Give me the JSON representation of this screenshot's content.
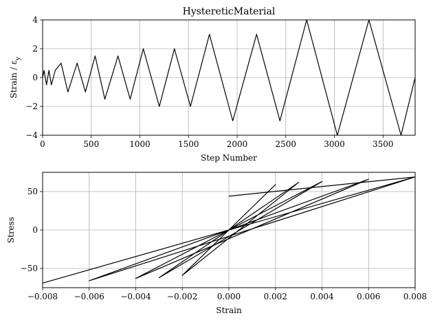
{
  "chart_data": [
    {
      "type": "line",
      "title": "HystereticMaterial",
      "xlabel": "Step Number",
      "ylabel": "Strain / ε",
      "ylabel_sub": "y",
      "xlim": [
        0,
        3830
      ],
      "ylim": [
        -4,
        4
      ],
      "xticks": [
        0,
        500,
        1000,
        1500,
        2000,
        2500,
        3000,
        3500
      ],
      "yticks": [
        -4,
        -2,
        0,
        2,
        4
      ],
      "x": [
        0,
        15,
        40,
        65,
        90,
        130,
        190,
        260,
        355,
        440,
        540,
        640,
        775,
        900,
        1035,
        1200,
        1355,
        1520,
        1715,
        1955,
        2200,
        2440,
        2715,
        3030,
        3355,
        3685,
        3830
      ],
      "y": [
        0,
        0.5,
        -0.5,
        0.5,
        -0.5,
        0.5,
        1,
        -1,
        1,
        -1,
        1.5,
        -1.5,
        1.5,
        -1.5,
        2,
        -2,
        2,
        -2,
        3,
        -3,
        3,
        -3,
        4,
        -4,
        4,
        -4,
        0
      ]
    },
    {
      "type": "line",
      "title": "",
      "xlabel": "Strain",
      "ylabel": "Stress",
      "xlim": [
        -0.008,
        0.008
      ],
      "ylim": [
        -75,
        75
      ],
      "xticks": [
        -0.008,
        -0.006,
        -0.004,
        -0.002,
        0.0,
        0.002,
        0.004,
        0.006,
        0.008
      ],
      "xtick_labels": [
        "−0.008",
        "−0.006",
        "−0.004",
        "−0.002",
        "0.000",
        "0.002",
        "0.004",
        "0.006",
        "0.008"
      ],
      "yticks": [
        -50,
        0,
        50
      ],
      "ytick_labels": [
        "−50",
        "0",
        "50"
      ],
      "x": [
        0.0,
        0.002,
        -0.002,
        0.002,
        -0.002,
        0.003,
        -0.003,
        0.003,
        -0.003,
        0.004,
        -0.004,
        0.004,
        -0.004,
        0.006,
        -0.006,
        0.006,
        -0.006,
        0.008,
        -0.008,
        0.008,
        -0.008,
        0.008,
        0.0
      ],
      "y": [
        0,
        59,
        -59,
        59,
        -59,
        62,
        -62,
        62,
        -62,
        63,
        -63,
        63,
        -63,
        66,
        -66,
        66,
        -66,
        69,
        -69,
        69,
        -69,
        69,
        44
      ]
    }
  ]
}
